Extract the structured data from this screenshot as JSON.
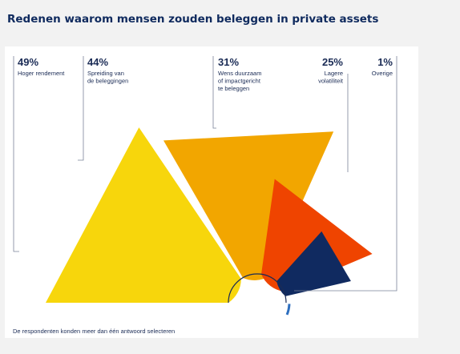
{
  "page": {
    "title": "Redenen waarom mensen zouden beleggen in private assets",
    "footnote": "De respondenten konden meer dan één antwoord selecteren"
  },
  "chart_data": {
    "type": "pie",
    "title": "Redenen waarom mensen zouden beleggen in private assets",
    "note": "De respondenten konden meer dan één antwoord selecteren",
    "slices": [
      {
        "value": 49,
        "value_label": "49%",
        "label_lines": [
          "Hoger rendement"
        ],
        "color": "#f7d60c"
      },
      {
        "value": 44,
        "value_label": "44%",
        "label_lines": [
          "Spreiding van",
          "de beleggingen"
        ],
        "color": "#f2a600"
      },
      {
        "value": 31,
        "value_label": "31%",
        "label_lines": [
          "Wens duurzaam",
          "of impactgericht",
          "te beleggen"
        ],
        "color": "#ef4400"
      },
      {
        "value": 25,
        "value_label": "25%",
        "label_lines": [
          "Lagere",
          "volatiliteit"
        ],
        "color": "#102a60"
      },
      {
        "value": 1,
        "value_label": "1%",
        "label_lines": [
          "Overige"
        ],
        "color": "#2e6fbf"
      }
    ]
  }
}
